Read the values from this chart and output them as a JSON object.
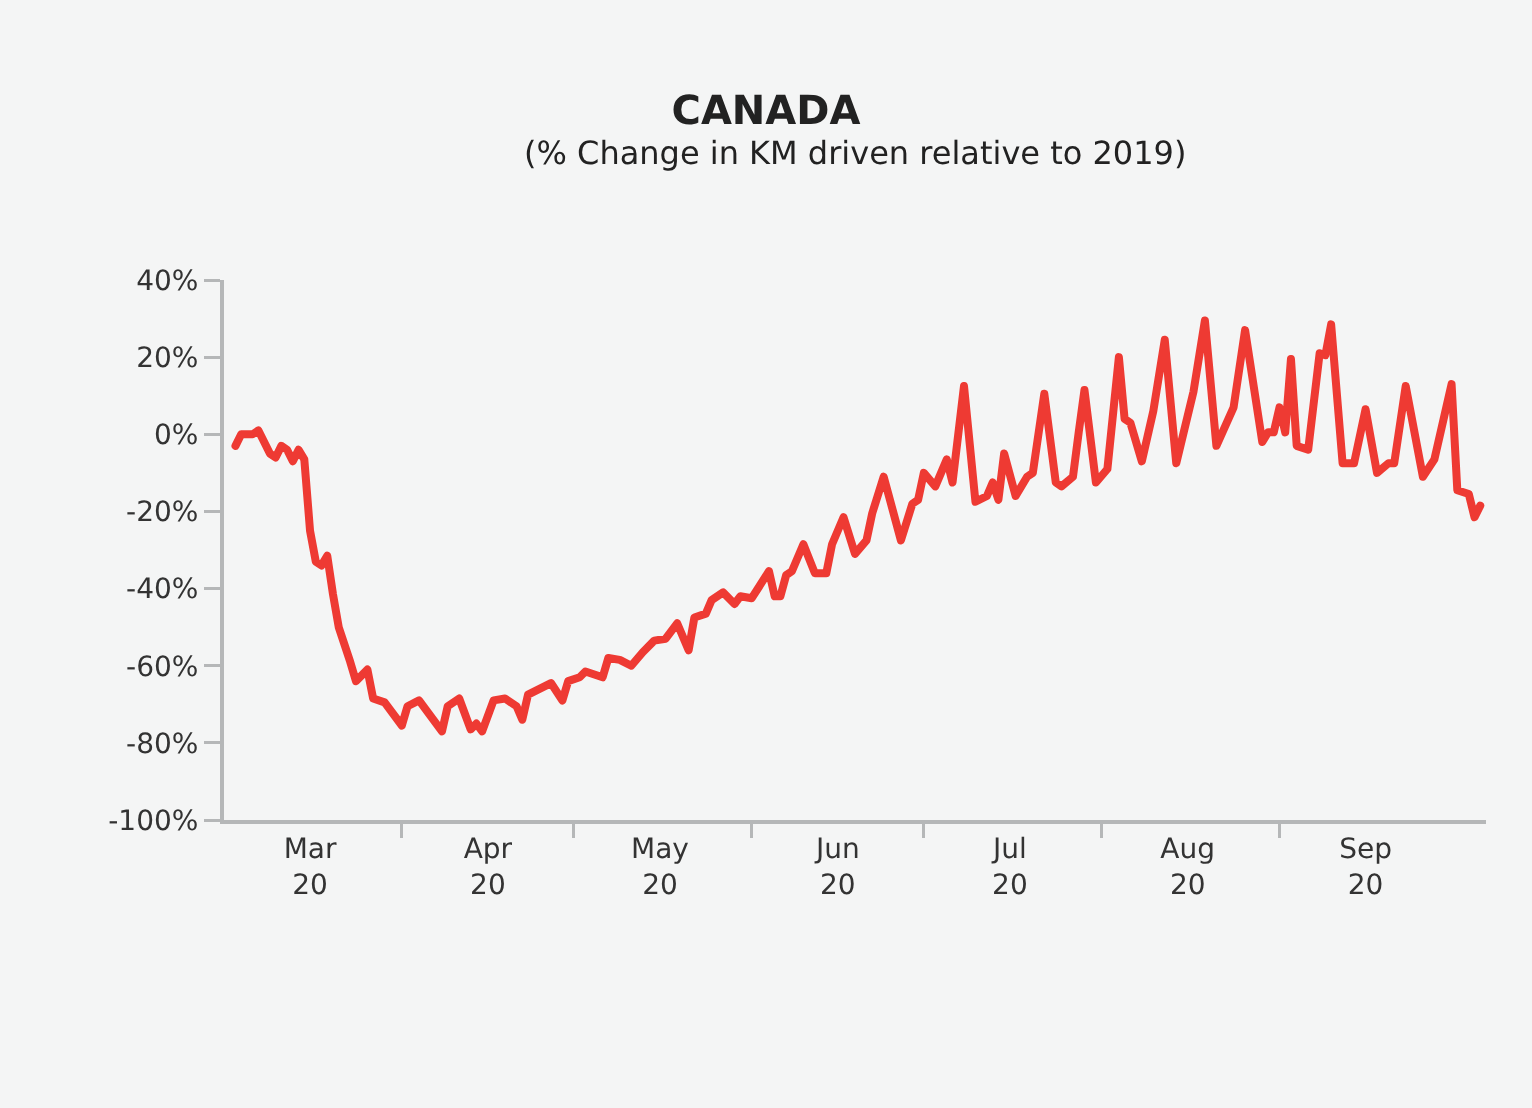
{
  "chart_data": {
    "type": "line",
    "title": "CANADA",
    "subtitle": "(% Change in KM driven relative to 2019)",
    "x": [
      "2020-03-03",
      "2020-03-04",
      "2020-03-06",
      "2020-03-07",
      "2020-03-09",
      "2020-03-10",
      "2020-03-11",
      "2020-03-12",
      "2020-03-13",
      "2020-03-14",
      "2020-03-15",
      "2020-03-16",
      "2020-03-17",
      "2020-03-18",
      "2020-03-19",
      "2020-03-20",
      "2020-03-21",
      "2020-03-23",
      "2020-03-24",
      "2020-03-26",
      "2020-03-27",
      "2020-03-29",
      "2020-04-01",
      "2020-04-02",
      "2020-04-04",
      "2020-04-06",
      "2020-04-08",
      "2020-04-09",
      "2020-04-11",
      "2020-04-13",
      "2020-04-14",
      "2020-04-15",
      "2020-04-17",
      "2020-04-19",
      "2020-04-21",
      "2020-04-22",
      "2020-04-23",
      "2020-04-27",
      "2020-04-29",
      "2020-04-30",
      "2020-05-02",
      "2020-05-03",
      "2020-05-06",
      "2020-05-07",
      "2020-05-09",
      "2020-05-11",
      "2020-05-13",
      "2020-05-15",
      "2020-05-17",
      "2020-05-19",
      "2020-05-21",
      "2020-05-22",
      "2020-05-24",
      "2020-05-25",
      "2020-05-27",
      "2020-05-29",
      "2020-05-30",
      "2020-06-01",
      "2020-06-04",
      "2020-06-05",
      "2020-06-06",
      "2020-06-07",
      "2020-06-08",
      "2020-06-10",
      "2020-06-12",
      "2020-06-14",
      "2020-06-15",
      "2020-06-17",
      "2020-06-19",
      "2020-06-21",
      "2020-06-22",
      "2020-06-24",
      "2020-06-27",
      "2020-06-29",
      "2020-06-30",
      "2020-07-01",
      "2020-07-03",
      "2020-07-05",
      "2020-07-06",
      "2020-07-08",
      "2020-07-10",
      "2020-07-12",
      "2020-07-13",
      "2020-07-14",
      "2020-07-15",
      "2020-07-17",
      "2020-07-19",
      "2020-07-20",
      "2020-07-22",
      "2020-07-24",
      "2020-07-25",
      "2020-07-27",
      "2020-07-28",
      "2020-07-29",
      "2020-07-31",
      "2020-08-02",
      "2020-08-04",
      "2020-08-05",
      "2020-08-06",
      "2020-08-08",
      "2020-08-10",
      "2020-08-12",
      "2020-08-14",
      "2020-08-17",
      "2020-08-19",
      "2020-08-21",
      "2020-08-24",
      "2020-08-26",
      "2020-08-29",
      "2020-08-30",
      "2020-08-31",
      "2020-09-01",
      "2020-09-02",
      "2020-09-03",
      "2020-09-04",
      "2020-09-06",
      "2020-09-08",
      "2020-09-09",
      "2020-09-10",
      "2020-09-12",
      "2020-09-14",
      "2020-09-16",
      "2020-09-18",
      "2020-09-20",
      "2020-09-21",
      "2020-09-23",
      "2020-09-26",
      "2020-09-28",
      "2020-10-01",
      "2020-10-02",
      "2020-10-04",
      "2020-10-05",
      "2020-10-06"
    ],
    "series": [
      {
        "color": "#ee3a33",
        "values": [
          -3,
          0,
          0,
          1,
          -5,
          -6,
          -3,
          -4,
          -7,
          -4,
          -6.5,
          -25,
          -33,
          -34,
          -31.5,
          -41.5,
          -50,
          -59,
          -64,
          -61,
          -68.5,
          -69.5,
          -75.5,
          -70.5,
          -69,
          -73,
          -77,
          -70.5,
          -68.5,
          -76.5,
          -75,
          -77,
          -69,
          -68.5,
          -70.5,
          -74,
          -67.5,
          -64.5,
          -69,
          -64,
          -63,
          -61.5,
          -63,
          -58,
          -58.5,
          -60,
          -56.5,
          -53.5,
          -53,
          -49,
          -56,
          -47.5,
          -46.5,
          -43,
          -41,
          -44,
          -42,
          -42.5,
          -35.5,
          -42,
          -42,
          -36.5,
          -35.5,
          -28.5,
          -36,
          -36,
          -28.5,
          -21.5,
          -31,
          -27.5,
          -20.5,
          -11,
          -27.5,
          -18,
          -17,
          -10,
          -13.5,
          -6.5,
          -12.5,
          12.5,
          -17.5,
          -16,
          -12.5,
          -17,
          -5,
          -16,
          -11,
          -10,
          10.5,
          -12.5,
          -13.5,
          -11,
          0.5,
          11.5,
          -12.5,
          -9,
          20,
          4,
          3,
          -7,
          6,
          24.5,
          -7.5,
          11,
          29.5,
          -3,
          7,
          27,
          -2,
          0.5,
          0.5,
          7,
          0.5,
          19.5,
          -3,
          -4,
          21,
          20.5,
          28.5,
          -7.5,
          -7.5,
          6.5,
          -10,
          -7.5,
          -7.5,
          12.5,
          -11,
          -6.5,
          13,
          -14.5,
          -15.5,
          -21.5,
          -18.5
        ]
      }
    ],
    "xlim": [
      "2020-03-01",
      "2020-10-07"
    ],
    "xticks": [
      {
        "value": "2020-04-01",
        "label": null
      },
      {
        "value": "2020-05-01",
        "label": null
      },
      {
        "value": "2020-06-01",
        "label": null
      },
      {
        "value": "2020-07-01",
        "label": null
      },
      {
        "value": "2020-08-01",
        "label": null
      },
      {
        "value": "2020-09-01",
        "label": null
      },
      {
        "value": "2020-03-16",
        "label": "Mar 20"
      },
      {
        "value": "2020-04-16",
        "label": "Apr 20"
      },
      {
        "value": "2020-05-16",
        "label": "May 20"
      },
      {
        "value": "2020-06-16",
        "label": "Jun 20"
      },
      {
        "value": "2020-07-16",
        "label": "Jul 20"
      },
      {
        "value": "2020-08-16",
        "label": "Aug 20"
      },
      {
        "value": "2020-09-16",
        "label": "Sep 20"
      }
    ],
    "ylim": [
      -100,
      40
    ],
    "yticks": [
      {
        "value": -100,
        "label": "-100%"
      },
      {
        "value": -80,
        "label": "-80%"
      },
      {
        "value": -60,
        "label": "-60%"
      },
      {
        "value": -40,
        "label": "-40%"
      },
      {
        "value": -20,
        "label": "-20%"
      },
      {
        "value": 0,
        "label": "0%"
      },
      {
        "value": 20,
        "label": "20%"
      },
      {
        "value": 40,
        "label": "40%"
      }
    ],
    "marker": "none",
    "line_style": "solid"
  }
}
